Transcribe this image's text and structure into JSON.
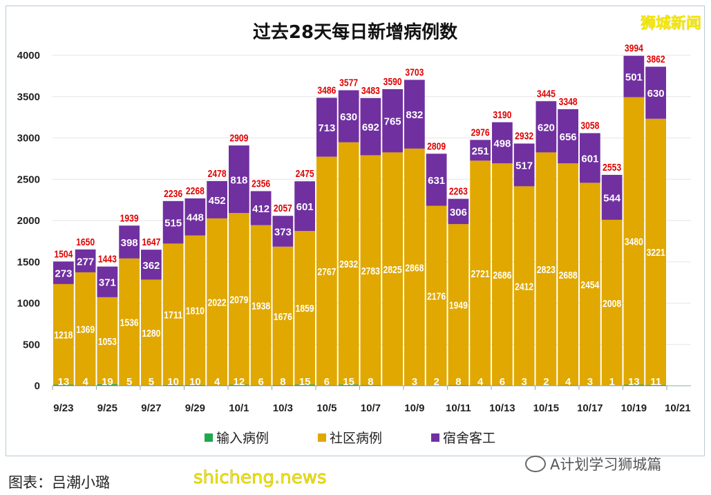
{
  "chart_data": {
    "type": "bar",
    "stacked": true,
    "title": "过去28天每日新增病例数",
    "categories": [
      "9/23",
      "9/24",
      "9/25",
      "9/26",
      "9/27",
      "9/28",
      "9/29",
      "9/30",
      "10/1",
      "10/2",
      "10/3",
      "10/4",
      "10/5",
      "10/6",
      "10/7",
      "10/8",
      "10/9",
      "10/10",
      "10/11",
      "10/12",
      "10/13",
      "10/14",
      "10/15",
      "10/16",
      "10/17",
      "10/18",
      "10/19",
      "10/20"
    ],
    "xtick_labels": [
      "9/23",
      "9/25",
      "9/27",
      "9/29",
      "10/1",
      "10/3",
      "10/5",
      "10/7",
      "10/9",
      "10/11",
      "10/13",
      "10/15",
      "10/17",
      "10/19",
      "10/21"
    ],
    "ylim": [
      0,
      4000
    ],
    "yticks": [
      0,
      500,
      1000,
      1500,
      2000,
      2500,
      3000,
      3500,
      4000
    ],
    "grid": true,
    "legend_position": "bottom",
    "series": [
      {
        "name": "输入病例",
        "color": "#1fa84f",
        "values": [
          13,
          4,
          19,
          5,
          5,
          10,
          10,
          4,
          12,
          6,
          8,
          15,
          6,
          15,
          8,
          0,
          3,
          2,
          8,
          4,
          6,
          3,
          2,
          4,
          3,
          1,
          13,
          11
        ]
      },
      {
        "name": "社区病例",
        "color": "#e0a800",
        "values": [
          1218,
          1369,
          1053,
          1536,
          1280,
          1711,
          1810,
          2022,
          2079,
          1938,
          1676,
          1859,
          2767,
          2932,
          2783,
          2825,
          2868,
          2176,
          1949,
          2721,
          2686,
          2412,
          2823,
          2688,
          2454,
          2008,
          3480,
          3221
        ]
      },
      {
        "name": "宿舍客工",
        "color": "#7030a0",
        "values": [
          273,
          277,
          371,
          398,
          362,
          515,
          448,
          452,
          818,
          412,
          373,
          601,
          713,
          630,
          692,
          765,
          832,
          631,
          306,
          251,
          498,
          517,
          620,
          656,
          601,
          544,
          501,
          630
        ]
      }
    ],
    "totals": [
      1504,
      1650,
      1443,
      1939,
      1647,
      2236,
      2268,
      2478,
      2909,
      2356,
      2057,
      2475,
      3486,
      3577,
      3483,
      3590,
      3703,
      2809,
      2263,
      2976,
      3190,
      2932,
      3445,
      3348,
      3058,
      2553,
      3994,
      3862
    ],
    "total_label_color": "#e00000"
  },
  "logo": "狮城新闻",
  "wechat_account": "A计划学习狮城篇",
  "caption": "图表：吕潮小璐",
  "watermark": "shicheng.news"
}
